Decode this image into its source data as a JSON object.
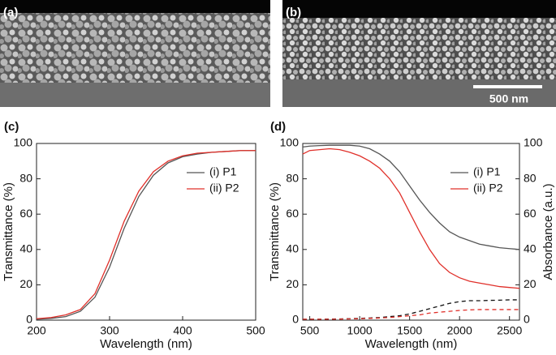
{
  "panels": [
    {
      "label": "(a)"
    },
    {
      "label": "(b)",
      "scale_bar": "500 nm"
    }
  ],
  "chart_data": [
    {
      "type": "line",
      "panel_label": "(c)",
      "x_label": "Wavelength (nm)",
      "y_label": "Transmittance (%)",
      "x": [
        200,
        220,
        240,
        260,
        280,
        300,
        320,
        340,
        360,
        380,
        400,
        420,
        440,
        460,
        480,
        500
      ],
      "series": [
        {
          "name": "(i) P1",
          "color": "#555555",
          "values": [
            0.5,
            1,
            2,
            5,
            13,
            30,
            52,
            70,
            82,
            89,
            92.5,
            94,
            95,
            95.5,
            96,
            96
          ]
        },
        {
          "name": "(ii) P2",
          "color": "#e0302a",
          "values": [
            0.8,
            1.5,
            3,
            6,
            15,
            34,
            56,
            73,
            84,
            90,
            93,
            94.5,
            95,
            95.5,
            96,
            96
          ]
        }
      ],
      "xlim": [
        200,
        500
      ],
      "xticks": [
        200,
        300,
        400,
        500
      ],
      "ylim": [
        0,
        100
      ],
      "yticks": [
        0,
        20,
        40,
        60,
        80,
        100
      ],
      "legend": "center right"
    },
    {
      "type": "line",
      "panel_label": "(d)",
      "x_label": "Wavelength (nm)",
      "y_label": "Transmittance (%)",
      "y2_label": "Absorbance (a.u.)",
      "x": [
        430,
        500,
        600,
        700,
        800,
        900,
        1000,
        1100,
        1200,
        1300,
        1400,
        1500,
        1600,
        1700,
        1800,
        1900,
        2000,
        2100,
        2200,
        2300,
        2400,
        2500,
        2600
      ],
      "series": [
        {
          "name": "(i) P1",
          "color": "#555555",
          "values": [
            98,
            98.5,
            98.8,
            99,
            99,
            99,
            98.5,
            97,
            94,
            90,
            84,
            76,
            68,
            61,
            55,
            50,
            47,
            45,
            43,
            42,
            41,
            40.5,
            40
          ]
        },
        {
          "name": "(ii) P2",
          "color": "#e0302a",
          "values": [
            94,
            96,
            96.5,
            97,
            96.5,
            95,
            93,
            90,
            86,
            80,
            72,
            61,
            50,
            40,
            32,
            27,
            24,
            22,
            21,
            20,
            19,
            18.5,
            18
          ]
        },
        {
          "color": "#111111",
          "dash": true,
          "axis": "y2",
          "values": [
            0.5,
            0.5,
            0.5,
            0.6,
            0.7,
            0.8,
            1,
            1.2,
            1.5,
            2,
            2.5,
            3.5,
            5,
            6.5,
            8,
            9.5,
            10.5,
            11,
            11,
            11.2,
            11.3,
            11.5,
            11.5
          ]
        },
        {
          "color": "#e0302a",
          "dash": true,
          "axis": "y2",
          "values": [
            0.5,
            0.5,
            0.5,
            0.5,
            0.6,
            0.7,
            0.8,
            1,
            1.2,
            1.5,
            2,
            2.5,
            3,
            4,
            4.5,
            5,
            5.5,
            5.8,
            6,
            6,
            6,
            6,
            6
          ]
        }
      ],
      "xlim": [
        430,
        2600
      ],
      "xticks": [
        500,
        1000,
        1500,
        2000,
        2500
      ],
      "ylim": [
        0,
        100
      ],
      "yticks": [
        0,
        20,
        40,
        60,
        80,
        100
      ],
      "y2lim": [
        0,
        100
      ],
      "y2ticks": [
        0,
        20,
        40,
        60,
        80,
        100
      ],
      "legend": "center right"
    }
  ]
}
